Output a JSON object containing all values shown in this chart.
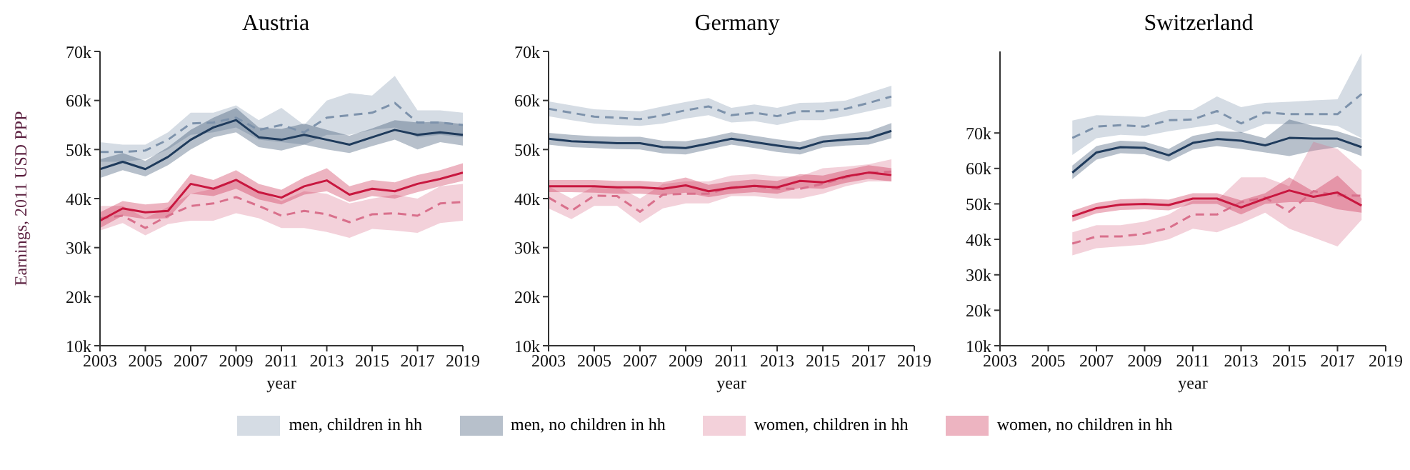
{
  "chart_data": [
    {
      "type": "line",
      "title": "Austria",
      "xlabel": "year",
      "ylabel": "Earnings, 2011 USD PPP",
      "x": [
        2003,
        2004,
        2005,
        2006,
        2007,
        2008,
        2009,
        2010,
        2011,
        2012,
        2013,
        2014,
        2015,
        2016,
        2017,
        2018,
        2019
      ],
      "xlim": [
        2003,
        2019
      ],
      "xticks": [
        2003,
        2005,
        2007,
        2009,
        2011,
        2013,
        2015,
        2017,
        2019
      ],
      "ylim": [
        10000,
        70000
      ],
      "yticks": [
        {
          "value": 10000,
          "label": "10k"
        },
        {
          "value": 20000,
          "label": "20k"
        },
        {
          "value": 30000,
          "label": "30k"
        },
        {
          "value": 40000,
          "label": "40k"
        },
        {
          "value": 50000,
          "label": "50k"
        },
        {
          "value": 60000,
          "label": "60k"
        },
        {
          "value": 70000,
          "label": "70k"
        }
      ],
      "legend": "bottom",
      "marker": "none",
      "series": [
        {
          "name": "men, children in hh",
          "color": "#7d92ab",
          "line_style": "dashed",
          "values": [
            49500,
            49500,
            49800,
            52000,
            55300,
            55500,
            56500,
            54000,
            55000,
            53500,
            56500,
            57000,
            57500,
            59500,
            55500,
            55500,
            55000
          ],
          "lower": [
            47500,
            47500,
            48000,
            50000,
            53000,
            53500,
            54500,
            52000,
            51500,
            51000,
            53000,
            53000,
            54000,
            54500,
            52500,
            53000,
            52500
          ],
          "upper": [
            51500,
            51000,
            51000,
            53500,
            57500,
            57500,
            59000,
            56000,
            58500,
            55000,
            60000,
            61500,
            61000,
            65000,
            58000,
            58000,
            57500
          ]
        },
        {
          "name": "men, no children in hh",
          "color": "#1f3b5c",
          "line_style": "solid",
          "values": [
            46000,
            47500,
            46000,
            48500,
            52000,
            54500,
            56000,
            52500,
            52000,
            53000,
            52000,
            51000,
            52500,
            54000,
            53000,
            53500,
            53000
          ],
          "lower": [
            44200,
            45800,
            44500,
            46800,
            50000,
            52500,
            53500,
            50500,
            49800,
            51000,
            50000,
            49300,
            50700,
            52000,
            50000,
            51500,
            50800
          ],
          "upper": [
            48000,
            49300,
            47700,
            50500,
            54000,
            56500,
            58500,
            54500,
            54200,
            55300,
            54000,
            52800,
            54300,
            56000,
            55500,
            55700,
            55200
          ]
        },
        {
          "name": "women, children in hh",
          "color": "#d9708c",
          "line_style": "dashed",
          "values": [
            36000,
            36500,
            34000,
            36500,
            38500,
            39000,
            40300,
            38500,
            36500,
            37500,
            36800,
            35200,
            36800,
            37000,
            36500,
            39000,
            39300
          ],
          "lower": [
            33500,
            35000,
            32500,
            34800,
            35500,
            35500,
            37000,
            36000,
            34000,
            34000,
            33200,
            32000,
            33800,
            33500,
            33000,
            35000,
            35500
          ],
          "upper": [
            38500,
            38500,
            36000,
            38300,
            41000,
            42000,
            43500,
            41500,
            39500,
            41500,
            41000,
            39000,
            40000,
            40800,
            40000,
            42500,
            43000
          ]
        },
        {
          "name": "women, no children in hh",
          "color": "#c8173f",
          "line_style": "solid",
          "values": [
            35500,
            38000,
            37200,
            37500,
            43000,
            42000,
            43800,
            41300,
            40200,
            42500,
            43700,
            40800,
            42000,
            41500,
            43000,
            44000,
            45300
          ],
          "lower": [
            34000,
            36500,
            35800,
            36000,
            41000,
            40500,
            42000,
            39800,
            38800,
            40800,
            41500,
            39300,
            40500,
            40000,
            41300,
            42500,
            43600
          ],
          "upper": [
            37200,
            39500,
            38800,
            39200,
            45000,
            43800,
            45800,
            43000,
            41800,
            44300,
            46200,
            42500,
            43800,
            43300,
            44800,
            45800,
            47200
          ]
        }
      ]
    },
    {
      "type": "line",
      "title": "Germany",
      "xlabel": "year",
      "x": [
        2003,
        2004,
        2005,
        2006,
        2007,
        2008,
        2009,
        2010,
        2011,
        2012,
        2013,
        2014,
        2015,
        2016,
        2017,
        2018
      ],
      "xlim": [
        2003,
        2019
      ],
      "xticks": [
        2003,
        2005,
        2007,
        2009,
        2011,
        2013,
        2015,
        2017,
        2019
      ],
      "ylim": [
        10000,
        70000
      ],
      "yticks": [
        {
          "value": 10000,
          "label": "10k"
        },
        {
          "value": 20000,
          "label": "20k"
        },
        {
          "value": 30000,
          "label": "30k"
        },
        {
          "value": 40000,
          "label": "40k"
        },
        {
          "value": 50000,
          "label": "50k"
        },
        {
          "value": 60000,
          "label": "60k"
        },
        {
          "value": 70000,
          "label": "70k"
        }
      ],
      "marker": "none",
      "series": [
        {
          "color": "#7d92ab",
          "line_style": "dashed",
          "values": [
            58300,
            57500,
            56700,
            56500,
            56200,
            57000,
            58000,
            58800,
            57000,
            57500,
            56800,
            57800,
            57800,
            58300,
            59500,
            60800
          ],
          "lower": [
            56800,
            56000,
            55300,
            55000,
            54800,
            55300,
            56300,
            57000,
            55500,
            55800,
            55000,
            56000,
            56000,
            56800,
            57800,
            58800
          ],
          "upper": [
            59800,
            59000,
            58200,
            58000,
            57800,
            58800,
            59700,
            60500,
            58500,
            59200,
            58500,
            59500,
            59600,
            60000,
            61500,
            63000
          ]
        },
        {
          "color": "#1f3b5c",
          "line_style": "solid",
          "values": [
            52200,
            51700,
            51500,
            51300,
            51300,
            50500,
            50300,
            51200,
            52200,
            51500,
            50800,
            50200,
            51600,
            52000,
            52300,
            53800
          ],
          "lower": [
            51000,
            50500,
            50300,
            50100,
            50000,
            49200,
            49000,
            50000,
            51000,
            50300,
            49500,
            49000,
            50400,
            50800,
            51000,
            52300
          ],
          "upper": [
            53400,
            53000,
            52700,
            52600,
            52600,
            51800,
            51700,
            52500,
            53500,
            52800,
            52100,
            51500,
            52800,
            53200,
            53700,
            55400
          ]
        },
        {
          "color": "#d9708c",
          "line_style": "dashed",
          "values": [
            40200,
            37500,
            40600,
            40500,
            37300,
            40800,
            41000,
            41000,
            42300,
            42500,
            42000,
            42000,
            43000,
            44300,
            45300,
            45500
          ],
          "lower": [
            38000,
            35800,
            38500,
            38500,
            35000,
            38000,
            39000,
            39000,
            40500,
            40500,
            40000,
            40000,
            41000,
            42500,
            43500,
            43500
          ],
          "upper": [
            42500,
            40000,
            42500,
            42500,
            40000,
            43000,
            43500,
            43500,
            44700,
            45000,
            44500,
            44500,
            46200,
            46500,
            47000,
            48000
          ]
        },
        {
          "color": "#c8173f",
          "line_style": "solid",
          "values": [
            42500,
            42500,
            42500,
            42300,
            42300,
            42000,
            42700,
            41500,
            42200,
            42600,
            42300,
            43600,
            43300,
            44500,
            45300,
            44800
          ],
          "lower": [
            41300,
            41300,
            41200,
            41000,
            41000,
            40700,
            41200,
            40300,
            41000,
            41300,
            41000,
            42200,
            42000,
            43200,
            44000,
            43500
          ],
          "upper": [
            43800,
            43800,
            43800,
            43600,
            43600,
            43300,
            44300,
            42800,
            43500,
            43900,
            43600,
            45000,
            44700,
            45800,
            46800,
            46200
          ]
        }
      ]
    },
    {
      "type": "line",
      "title": "Switzerland",
      "xlabel": "year",
      "x": [
        2006,
        2007,
        2008,
        2009,
        2010,
        2011,
        2012,
        2013,
        2014,
        2015,
        2016,
        2017,
        2018
      ],
      "xlim": [
        2003,
        2019
      ],
      "xticks": [
        2003,
        2005,
        2007,
        2009,
        2011,
        2013,
        2015,
        2017,
        2019
      ],
      "ylim": [
        10000,
        93000
      ],
      "yticks": [
        {
          "value": 10000,
          "label": "10k"
        },
        {
          "value": 20000,
          "label": "20k"
        },
        {
          "value": 30000,
          "label": "30k"
        },
        {
          "value": 40000,
          "label": "40k"
        },
        {
          "value": 50000,
          "label": "50k"
        },
        {
          "value": 60000,
          "label": "60k"
        },
        {
          "value": 70000,
          "label": "70k"
        }
      ],
      "marker": "none",
      "series": [
        {
          "color": "#7d92ab",
          "line_style": "dashed",
          "values": [
            68600,
            71800,
            72200,
            71800,
            73600,
            73800,
            76200,
            72700,
            75800,
            75300,
            75300,
            75300,
            81000
          ],
          "lower": [
            63800,
            68500,
            69500,
            69200,
            70500,
            71500,
            72500,
            70000,
            72500,
            72500,
            72500,
            72000,
            68500
          ],
          "upper": [
            73500,
            75000,
            74800,
            74500,
            76500,
            76500,
            80300,
            77300,
            78500,
            78800,
            79200,
            79500,
            92500
          ]
        },
        {
          "color": "#1f3b5c",
          "line_style": "solid",
          "values": [
            58800,
            64500,
            66000,
            65800,
            63700,
            67200,
            68300,
            67800,
            66500,
            68600,
            68400,
            68400,
            66000
          ],
          "lower": [
            57000,
            62500,
            64300,
            64000,
            62000,
            65300,
            66300,
            65500,
            64500,
            63500,
            65000,
            66000,
            63500
          ],
          "upper": [
            60800,
            66300,
            67800,
            67500,
            65500,
            69200,
            70500,
            70300,
            68500,
            73800,
            72000,
            70500,
            68300
          ]
        },
        {
          "color": "#d9708c",
          "line_style": "dashed",
          "values": [
            38800,
            40800,
            40800,
            41600,
            43200,
            47000,
            47000,
            50500,
            51800,
            47800,
            53600,
            52400,
            52300
          ],
          "lower": [
            35500,
            37500,
            38000,
            38500,
            40000,
            43000,
            42000,
            44500,
            47500,
            43000,
            40500,
            38000,
            45500
          ],
          "upper": [
            42000,
            44000,
            44000,
            45000,
            47000,
            51000,
            51000,
            57500,
            57500,
            55000,
            67500,
            65500,
            59500
          ]
        },
        {
          "color": "#c8173f",
          "line_style": "solid",
          "values": [
            46500,
            48800,
            49800,
            50000,
            49700,
            51500,
            51500,
            49000,
            51500,
            53800,
            52000,
            53200,
            49500
          ],
          "lower": [
            45000,
            47300,
            48300,
            48500,
            48200,
            50000,
            50000,
            47000,
            50000,
            50500,
            50500,
            48500,
            47500
          ],
          "upper": [
            48000,
            50300,
            51300,
            51500,
            51200,
            53000,
            53000,
            51000,
            53000,
            57500,
            53500,
            58000,
            51500
          ]
        }
      ]
    }
  ]
}
